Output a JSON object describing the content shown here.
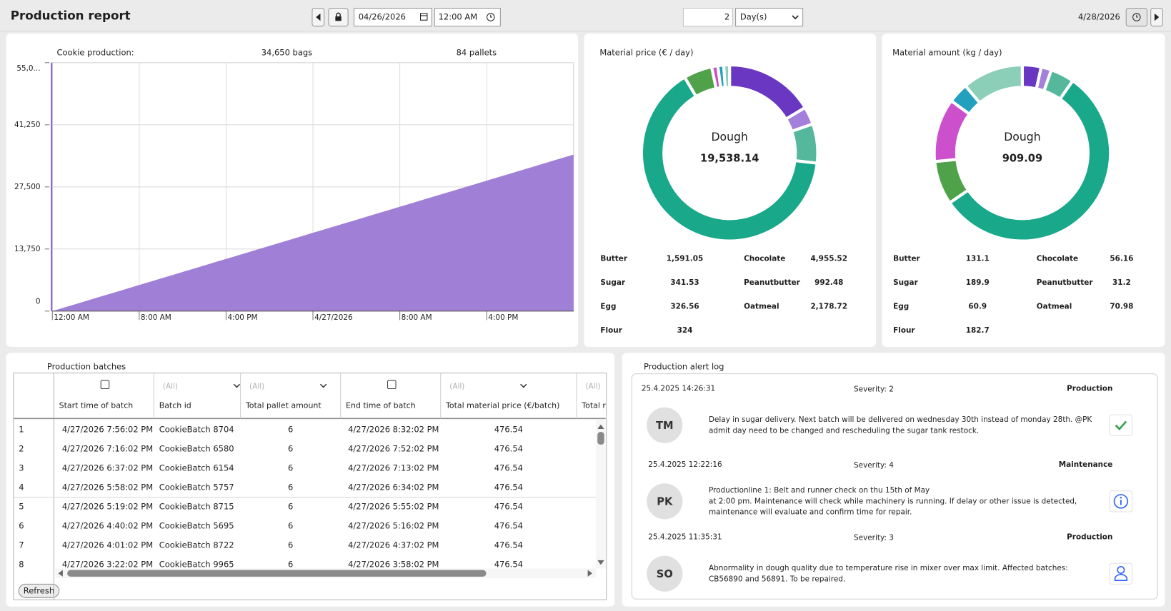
{
  "header": {
    "title": "Production report",
    "start_date": "04/26/2026",
    "start_time": "12:00 AM",
    "duration": 2,
    "duration_unit": "Day(s)",
    "end_date": "4/28/2026"
  },
  "chart_data": [
    {
      "type": "area",
      "title": "Cookie production:",
      "annotations": [
        "34,650 bags",
        "84 pallets"
      ],
      "x": [
        "2026-04-26T00:00",
        "2026-04-26T01:00",
        "2026-04-26T02:00",
        "2026-04-26T03:00",
        "2026-04-26T04:00",
        "2026-04-26T05:00",
        "2026-04-26T06:00",
        "2026-04-26T07:00",
        "2026-04-26T08:00",
        "2026-04-26T09:00",
        "2026-04-26T10:00",
        "2026-04-26T11:00",
        "2026-04-26T12:00",
        "2026-04-26T13:00",
        "2026-04-26T14:00",
        "2026-04-26T15:00",
        "2026-04-26T16:00",
        "2026-04-26T17:00",
        "2026-04-26T18:00",
        "2026-04-26T19:00",
        "2026-04-26T20:00",
        "2026-04-26T21:00",
        "2026-04-26T22:00",
        "2026-04-26T23:00",
        "2026-04-27T00:00",
        "2026-04-27T01:00",
        "2026-04-27T02:00",
        "2026-04-27T03:00",
        "2026-04-27T04:00",
        "2026-04-27T05:00",
        "2026-04-27T06:00",
        "2026-04-27T07:00",
        "2026-04-27T08:00",
        "2026-04-27T09:00",
        "2026-04-27T10:00",
        "2026-04-27T11:00",
        "2026-04-27T12:00",
        "2026-04-27T13:00",
        "2026-04-27T14:00",
        "2026-04-27T15:00",
        "2026-04-27T16:00",
        "2026-04-27T17:00",
        "2026-04-27T18:00",
        "2026-04-27T19:00",
        "2026-04-27T20:00",
        "2026-04-27T21:00",
        "2026-04-27T22:00",
        "2026-04-27T23:00",
        "2026-04-28T00:00"
      ],
      "values": [
        0,
        720,
        1440,
        2170,
        2890,
        3610,
        4330,
        5050,
        5780,
        6500,
        7220,
        7940,
        8660,
        9380,
        10110,
        10830,
        11550,
        12270,
        12990,
        13720,
        14440,
        15160,
        15880,
        16600,
        17330,
        18050,
        18770,
        19490,
        20210,
        20930,
        21660,
        22380,
        23100,
        23820,
        24540,
        25270,
        25990,
        26710,
        27430,
        28150,
        28880,
        29600,
        30320,
        31040,
        31760,
        32480,
        33210,
        33930,
        34650
      ],
      "color": "#a07fd6",
      "xlim": [
        "2026-04-26T00:00",
        "2026-04-28T00:00"
      ],
      "xticks": [
        {
          "value": "2026-04-26T00:00",
          "label": "12:00 AM"
        },
        {
          "value": "2026-04-26T08:00",
          "label": "8:00 AM"
        },
        {
          "value": "2026-04-26T16:00",
          "label": "4:00 PM"
        },
        {
          "value": "2026-04-27T00:00",
          "label": "4/27/2026"
        },
        {
          "value": "2026-04-27T08:00",
          "label": "8:00 AM"
        },
        {
          "value": "2026-04-27T16:00",
          "label": "4:00 PM"
        }
      ],
      "ylim": [
        0,
        55000
      ],
      "yticks": [
        0,
        {
          "value": 13750,
          "label": "13,750"
        },
        {
          "value": 27500,
          "label": "27,500"
        },
        {
          "value": 41250,
          "label": "41,250"
        },
        {
          "value": 55000,
          "label": "55,0..."
        }
      ],
      "grid": true
    },
    {
      "type": "donut",
      "title": "Material price (€ / day)",
      "categories": [
        "Butter",
        "Sugar",
        "Egg",
        "Flour",
        "Chocolate",
        "Peanutbutter",
        "Oatmeal",
        "Dough"
      ],
      "values": [
        1591.05,
        341.53,
        326.56,
        324,
        4955.52,
        992.48,
        2178.72,
        19538.14
      ],
      "value_labels": [
        "1,591.05",
        "341.53",
        "326.56",
        "324",
        "4,955.52",
        "992.48",
        "2,178.72",
        "19,538.14"
      ],
      "colors": [
        "#4fa24a",
        "#cc4fcc",
        "#23a0bd",
        "#8bcfb9",
        "#6a37c3",
        "#a47fdc",
        "#55b89c",
        "#19a88a"
      ],
      "selected": "Dough"
    },
    {
      "type": "donut",
      "title": "Material amount (kg / day)",
      "categories": [
        "Butter",
        "Sugar",
        "Egg",
        "Flour",
        "Chocolate",
        "Peanutbutter",
        "Oatmeal",
        "Dough"
      ],
      "values": [
        131.1,
        189.9,
        60.9,
        182.7,
        56.16,
        31.2,
        70.98,
        909.09
      ],
      "value_labels": [
        "131.1",
        "189.9",
        "60.9",
        "182.7",
        "56.16",
        "31.2",
        "70.98",
        "909.09"
      ],
      "colors": [
        "#4fa24a",
        "#cc4fcc",
        "#23a0bd",
        "#8bcfb9",
        "#6a37c3",
        "#a47fdc",
        "#55b89c",
        "#19a88a"
      ],
      "selected": "Dough"
    }
  ],
  "table": {
    "title": "Production batches",
    "columns": [
      "Start time of batch",
      "Batch id",
      "Total pallet amount",
      "End time of batch",
      "Total material price (€/batch)",
      "Total m"
    ],
    "filters": [
      null,
      "(All)",
      "(All)",
      null,
      "(All)",
      "(All)"
    ],
    "rows": [
      [
        1,
        "4/27/2026 7:56:02 PM",
        "CookieBatch 8704",
        6,
        "4/27/2026 8:32:02 PM",
        476.54
      ],
      [
        2,
        "4/27/2026 7:16:02 PM",
        "CookieBatch 6580",
        6,
        "4/27/2026 7:52:02 PM",
        476.54
      ],
      [
        3,
        "4/27/2026 6:37:02 PM",
        "CookieBatch 6154",
        6,
        "4/27/2026 7:13:02 PM",
        476.54
      ],
      [
        4,
        "4/27/2026 5:58:02 PM",
        "CookieBatch 5757",
        6,
        "4/27/2026 6:34:02 PM",
        476.54
      ],
      [
        5,
        "4/27/2026 5:19:02 PM",
        "CookieBatch 8715",
        6,
        "4/27/2026 5:55:02 PM",
        476.54
      ],
      [
        6,
        "4/27/2026 4:40:02 PM",
        "CookieBatch 5695",
        6,
        "4/27/2026 5:16:02 PM",
        476.54
      ],
      [
        7,
        "4/27/2026 4:01:02 PM",
        "CookieBatch 8722",
        6,
        "4/27/2026 4:37:02 PM",
        476.54
      ],
      [
        8,
        "4/27/2026 3:22:02 PM",
        "CookieBatch 9965",
        6,
        "4/27/2026 3:58:02 PM",
        476.54
      ]
    ],
    "refresh_button": "Refresh"
  },
  "alerts": {
    "title": "Production alert log",
    "items": [
      {
        "time": "25.4.2025 14:26:31",
        "severity": "Severity: 2",
        "category": "Production",
        "initials": "TM",
        "icon": "check",
        "message": [
          "Delay in sugar delivery. Next batch will be delivered on wednesday 30th instead of monday 28th.  @PK",
          "admit day  need to be changed and rescheduling the sugar tank restock."
        ]
      },
      {
        "time": "25.4.2025 12:22:16",
        "severity": "Severity: 4",
        "category": "Maintenance",
        "initials": "PK",
        "icon": "info",
        "message": [
          "Productionline 1: Belt and runner check on thu 15th of May",
          "at 2:00 pm. Maintenance will check while machinery is  running. If delay or other issue is detected,",
          "maintenance will  evaluate and confirm time for repair."
        ]
      },
      {
        "time": "25.4.2025 11:35:31",
        "severity": "Severity: 3",
        "category": "Production",
        "initials": "SO",
        "icon": "person",
        "message": [
          "Abnormality in dough quality due to temperature rise in mixer over max limit. Affected batches:",
          "CB56890 and 56891. To be repaired."
        ]
      }
    ]
  }
}
